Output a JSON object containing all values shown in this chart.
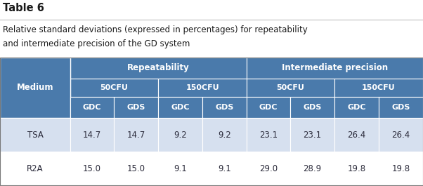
{
  "table_title": "Table 6",
  "subtitle_line1": "Relative standard deviations (expressed in percentages) for repeatability",
  "subtitle_line2": "and intermediate precision of the GD system",
  "header_bg": "#4a7aab",
  "header_text_color": "#ffffff",
  "row_bg_tsa": "#d6e0ef",
  "row_bg_r2a": "#e8eef5",
  "row_bg_even": "#ffffff",
  "border_color": "#ffffff",
  "cell_text_color": "#2a2a3a",
  "col_headers": [
    "GDC",
    "GDS",
    "GDC",
    "GDS",
    "GDC",
    "GDS",
    "GDC",
    "GDS"
  ],
  "sub_headers": [
    "50CFU",
    "150CFU",
    "50CFU",
    "150CFU"
  ],
  "group_headers": [
    "Repeatability",
    "Intermediate precision"
  ],
  "rows": [
    [
      "TSA",
      "14.7",
      "14.7",
      "9.2",
      "9.2",
      "23.1",
      "23.1",
      "26.4",
      "26.4"
    ],
    [
      "R2A",
      "15.0",
      "15.0",
      "9.1",
      "9.1",
      "29.0",
      "28.9",
      "19.8",
      "19.8"
    ]
  ],
  "title_fontsize": 10.5,
  "subtitle_fontsize": 8.5,
  "header_fontsize": 8.0,
  "data_fontsize": 8.5
}
